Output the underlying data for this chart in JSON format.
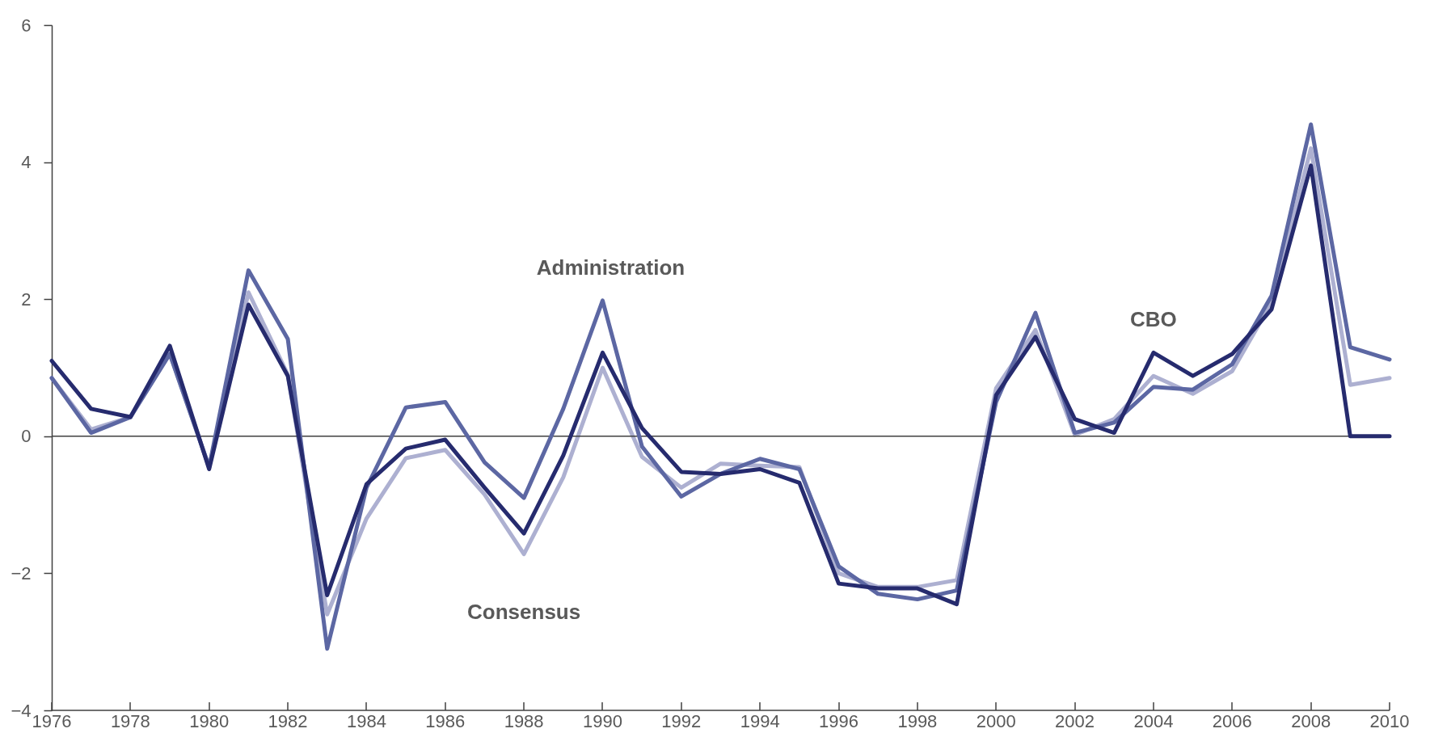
{
  "chart_data": {
    "type": "line",
    "x": [
      1976,
      1977,
      1978,
      1979,
      1980,
      1981,
      1982,
      1983,
      1984,
      1985,
      1986,
      1987,
      1988,
      1989,
      1990,
      1991,
      1992,
      1993,
      1994,
      1995,
      1996,
      1997,
      1998,
      1999,
      2000,
      2001,
      2002,
      2003,
      2004,
      2005,
      2006,
      2007,
      2008,
      2009,
      2010
    ],
    "series": [
      {
        "name": "Consensus",
        "color": "#adb0d1",
        "values": [
          0.85,
          0.1,
          0.28,
          1.2,
          -0.45,
          2.1,
          0.9,
          -2.6,
          -1.2,
          -0.32,
          -0.2,
          -0.85,
          -1.72,
          -0.6,
          1.0,
          -0.3,
          -0.75,
          -0.4,
          -0.43,
          -0.45,
          -2.0,
          -2.2,
          -2.2,
          -2.1,
          0.7,
          1.55,
          0.02,
          0.25,
          0.88,
          0.62,
          0.95,
          1.95,
          4.2,
          0.75,
          0.85
        ]
      },
      {
        "name": "Administration",
        "color": "#5c67a3",
        "values": [
          0.85,
          0.05,
          0.28,
          1.2,
          -0.45,
          2.42,
          1.42,
          -3.1,
          -0.75,
          0.42,
          0.5,
          -0.38,
          -0.9,
          0.4,
          1.98,
          -0.15,
          -0.88,
          -0.55,
          -0.33,
          -0.48,
          -1.9,
          -2.3,
          -2.38,
          -2.25,
          0.5,
          1.8,
          0.05,
          0.2,
          0.72,
          0.68,
          1.05,
          2.05,
          4.55,
          1.3,
          1.12
        ]
      },
      {
        "name": "CBO",
        "color": "#262b6e",
        "values": [
          1.1,
          0.4,
          0.28,
          1.32,
          -0.48,
          1.92,
          0.88,
          -2.32,
          -0.7,
          -0.18,
          -0.05,
          -0.75,
          -1.42,
          -0.28,
          1.22,
          0.12,
          -0.52,
          -0.55,
          -0.48,
          -0.68,
          -2.15,
          -2.22,
          -2.22,
          -2.45,
          0.6,
          1.45,
          0.25,
          0.05,
          1.22,
          0.88,
          1.2,
          1.85,
          3.95,
          0,
          0
        ]
      }
    ],
    "xlim": [
      1976,
      2010
    ],
    "xticks": [
      1976,
      1978,
      1980,
      1982,
      1984,
      1986,
      1988,
      1990,
      1992,
      1994,
      1996,
      1998,
      2000,
      2002,
      2004,
      2006,
      2008,
      2010
    ],
    "ylim": [
      -4,
      6
    ],
    "yticks": [
      -4,
      -2,
      0,
      2,
      4,
      6
    ],
    "ref_lines": [
      {
        "axis": "y",
        "value": 0,
        "color": "#404040"
      }
    ],
    "grid": false,
    "legend": false,
    "marker": "none",
    "line_style": "solid"
  }
}
